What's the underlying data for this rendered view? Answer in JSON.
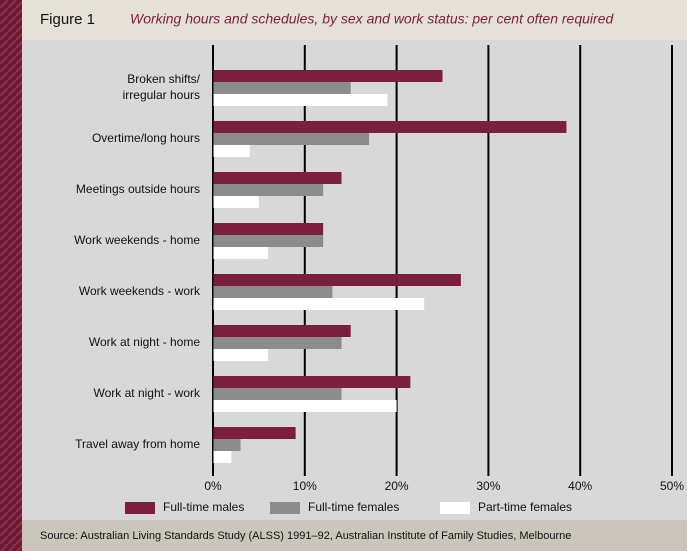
{
  "chart_data": {
    "type": "hbar",
    "figure_label": "Figure 1",
    "title": "Working hours and schedules, by sex and work status: per cent often required",
    "source": "Source: Australian Living Standards Study (ALSS) 1991–92, Australian Institute of Family Studies, Melbourne",
    "categories": [
      "Broken shifts/ irregular hours",
      "Overtime/long hours",
      "Meetings outside hours",
      "Work weekends - home",
      "Work weekends - work",
      "Work at night - home",
      "Work at night - work",
      "Travel away from home"
    ],
    "series": [
      {
        "name": "Full-time males",
        "color": "#7a1f3d",
        "values": [
          25,
          38.5,
          14,
          12,
          27,
          15,
          21.5,
          9
        ]
      },
      {
        "name": "Full-time females",
        "color": "#8c8c8c",
        "values": [
          15,
          17,
          12,
          12,
          13,
          14,
          14,
          3
        ]
      },
      {
        "name": "Part-time females",
        "color": "#ffffff",
        "values": [
          19,
          4,
          5,
          6,
          23,
          6,
          20,
          2
        ]
      }
    ],
    "xlim": [
      0,
      50
    ],
    "xticks": [
      {
        "value": 0,
        "label": "0%"
      },
      {
        "value": 10,
        "label": "10%"
      },
      {
        "value": 20,
        "label": "20%"
      },
      {
        "value": 30,
        "label": "30%"
      },
      {
        "value": 40,
        "label": "40%"
      },
      {
        "value": 50,
        "label": "50%"
      }
    ],
    "grid": true,
    "legend": "bottom"
  }
}
